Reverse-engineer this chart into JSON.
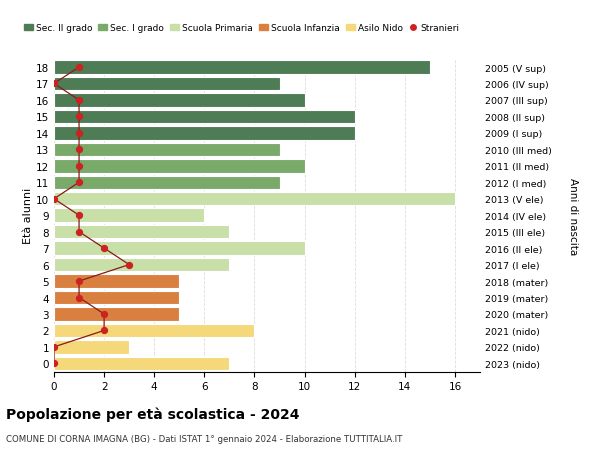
{
  "ages": [
    18,
    17,
    16,
    15,
    14,
    13,
    12,
    11,
    10,
    9,
    8,
    7,
    6,
    5,
    4,
    3,
    2,
    1,
    0
  ],
  "years": [
    "2005 (V sup)",
    "2006 (IV sup)",
    "2007 (III sup)",
    "2008 (II sup)",
    "2009 (I sup)",
    "2010 (III med)",
    "2011 (II med)",
    "2012 (I med)",
    "2013 (V ele)",
    "2014 (IV ele)",
    "2015 (III ele)",
    "2016 (II ele)",
    "2017 (I ele)",
    "2018 (mater)",
    "2019 (mater)",
    "2020 (mater)",
    "2021 (nido)",
    "2022 (nido)",
    "2023 (nido)"
  ],
  "bar_values": [
    15,
    9,
    10,
    12,
    12,
    9,
    10,
    9,
    16,
    6,
    7,
    10,
    7,
    5,
    5,
    5,
    8,
    3,
    7
  ],
  "bar_colors": [
    "#4d7c55",
    "#4d7c55",
    "#4d7c55",
    "#4d7c55",
    "#4d7c55",
    "#7aaa6a",
    "#7aaa6a",
    "#7aaa6a",
    "#c8dfa8",
    "#c8dfa8",
    "#c8dfa8",
    "#c8dfa8",
    "#c8dfa8",
    "#d98040",
    "#d98040",
    "#d98040",
    "#f5d87a",
    "#f5d87a",
    "#f5d87a"
  ],
  "stranieri_values": [
    1,
    0,
    1,
    1,
    1,
    1,
    1,
    1,
    0,
    1,
    1,
    2,
    3,
    1,
    1,
    2,
    2,
    0,
    0
  ],
  "title": "Popolazione per età scolastica - 2024",
  "subtitle": "COMUNE DI CORNA IMAGNA (BG) - Dati ISTAT 1° gennaio 2024 - Elaborazione TUTTITALIA.IT",
  "ylabel": "Età alunni",
  "right_label": "Anni di nascita",
  "legend_labels": [
    "Sec. II grado",
    "Sec. I grado",
    "Scuola Primaria",
    "Scuola Infanzia",
    "Asilo Nido",
    "Stranieri"
  ],
  "legend_colors": [
    "#4d7c55",
    "#7aaa6a",
    "#c8dfa8",
    "#d98040",
    "#f5d87a",
    "#cc2222"
  ],
  "xlim": [
    0,
    17
  ],
  "xticks": [
    0,
    2,
    4,
    6,
    8,
    10,
    12,
    14,
    16
  ],
  "stranieri_color": "#cc2222",
  "line_color": "#8b1a1a",
  "bg_color": "#ffffff",
  "grid_color": "#dddddd"
}
